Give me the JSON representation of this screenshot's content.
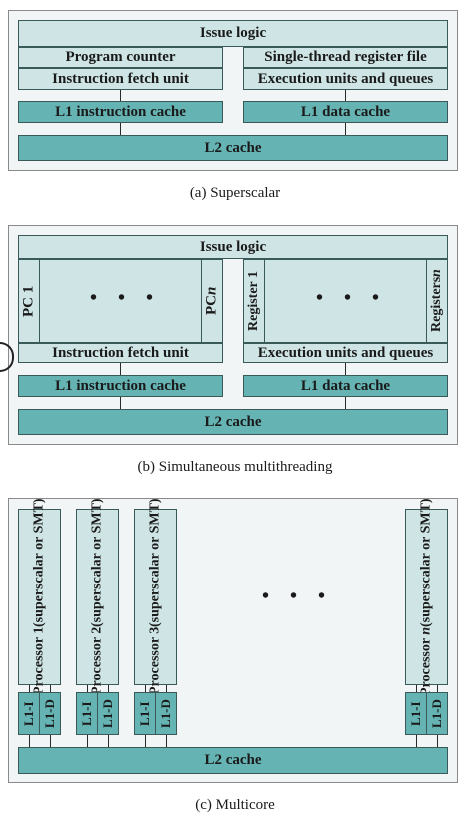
{
  "superscalar": {
    "issue_logic": "Issue logic",
    "program_counter": "Program counter",
    "register_file": "Single-thread register file",
    "fetch_unit": "Instruction fetch unit",
    "exec_units": "Execution units and queues",
    "l1_instr": "L1 instruction cache",
    "l1_data": "L1 data cache",
    "l2": "L2 cache",
    "caption": "(a) Superscalar"
  },
  "smt": {
    "issue_logic": "Issue logic",
    "pc1": "PC 1",
    "pcn_prefix": "PC ",
    "pcn_var": "n",
    "reg1": "Register 1",
    "regn_prefix": "Registers ",
    "regn_var": "n",
    "ellipsis": "• • •",
    "fetch_unit": "Instruction fetch unit",
    "exec_units": "Execution units and queues",
    "l1_instr": "L1 instruction cache",
    "l1_data": "L1 data cache",
    "l2": "L2 cache",
    "caption": "(b) Simultaneous multithreading"
  },
  "multicore": {
    "processors": [
      {
        "name": "Processor 1",
        "sub": "(superscalar or SMT)"
      },
      {
        "name": "Processor 2",
        "sub": "(superscalar or SMT)"
      },
      {
        "name": "Processor 3",
        "sub": "(superscalar or SMT)"
      }
    ],
    "proc_n_prefix": "Processor ",
    "proc_n_var": "n",
    "proc_n_sub": "(superscalar or SMT)",
    "l1i": "L1-I",
    "l1d": "L1-D",
    "ellipsis": "• • •",
    "l2": "L2 cache",
    "caption": "(c) Multicore"
  }
}
